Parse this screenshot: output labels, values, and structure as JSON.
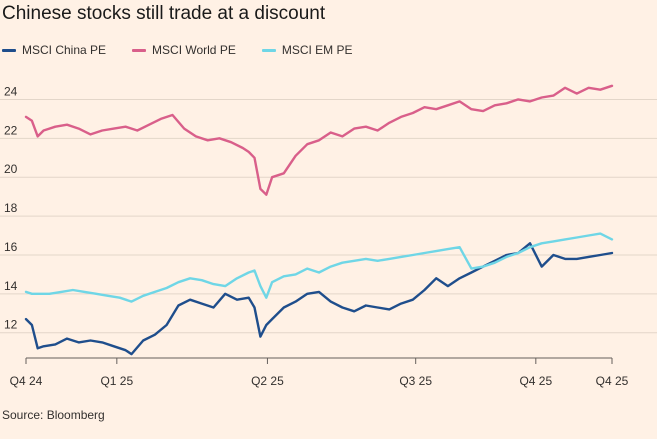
{
  "chart_data": {
    "type": "line",
    "title": "Chinese stocks still trade at a discount",
    "source": "Source: Bloomberg",
    "x_ticks": [
      "Q4 24",
      "Q1 25",
      "Q2 25",
      "Q3 25",
      "Q4 25",
      "Q4 25"
    ],
    "x_tick_positions": [
      0,
      0.155,
      0.412,
      0.665,
      0.87,
      1.0
    ],
    "ylim": [
      10.7,
      25
    ],
    "yticks": [
      12,
      14,
      16,
      18,
      20,
      22,
      24
    ],
    "grid": true,
    "series": [
      {
        "name": "MSCI China PE",
        "color": "#1f4e8c",
        "x": [
          0,
          0.01,
          0.02,
          0.03,
          0.05,
          0.07,
          0.09,
          0.11,
          0.13,
          0.15,
          0.17,
          0.18,
          0.2,
          0.22,
          0.24,
          0.26,
          0.28,
          0.3,
          0.32,
          0.34,
          0.36,
          0.38,
          0.39,
          0.4,
          0.41,
          0.42,
          0.44,
          0.46,
          0.48,
          0.5,
          0.52,
          0.54,
          0.56,
          0.58,
          0.6,
          0.62,
          0.64,
          0.66,
          0.68,
          0.7,
          0.72,
          0.74,
          0.76,
          0.78,
          0.8,
          0.82,
          0.84,
          0.86,
          0.88,
          0.9,
          0.92,
          0.94,
          0.96,
          0.98,
          1.0
        ],
        "values": [
          12.7,
          12.4,
          11.2,
          11.3,
          11.4,
          11.7,
          11.5,
          11.6,
          11.5,
          11.3,
          11.1,
          10.9,
          11.6,
          11.9,
          12.4,
          13.4,
          13.7,
          13.5,
          13.3,
          14.0,
          13.7,
          13.8,
          13.3,
          11.8,
          12.4,
          12.7,
          13.3,
          13.6,
          14.0,
          14.1,
          13.6,
          13.3,
          13.1,
          13.4,
          13.3,
          13.2,
          13.5,
          13.7,
          14.2,
          14.8,
          14.4,
          14.8,
          15.1,
          15.4,
          15.7,
          16.0,
          16.1,
          16.6,
          15.4,
          16.0,
          15.8,
          15.8,
          15.9,
          16.0,
          16.1
        ]
      },
      {
        "name": "MSCI World PE",
        "color": "#d95f8a",
        "x": [
          0,
          0.01,
          0.02,
          0.03,
          0.05,
          0.07,
          0.09,
          0.11,
          0.13,
          0.15,
          0.17,
          0.19,
          0.21,
          0.23,
          0.25,
          0.27,
          0.29,
          0.31,
          0.33,
          0.35,
          0.37,
          0.38,
          0.39,
          0.4,
          0.41,
          0.42,
          0.44,
          0.46,
          0.48,
          0.5,
          0.52,
          0.54,
          0.56,
          0.58,
          0.6,
          0.62,
          0.64,
          0.66,
          0.68,
          0.7,
          0.72,
          0.74,
          0.76,
          0.78,
          0.8,
          0.82,
          0.84,
          0.86,
          0.88,
          0.9,
          0.92,
          0.94,
          0.96,
          0.98,
          1.0
        ],
        "values": [
          23.1,
          22.9,
          22.1,
          22.4,
          22.6,
          22.7,
          22.5,
          22.2,
          22.4,
          22.5,
          22.6,
          22.4,
          22.7,
          23.0,
          23.2,
          22.5,
          22.1,
          21.9,
          22.0,
          21.8,
          21.5,
          21.3,
          21.0,
          19.4,
          19.1,
          20.0,
          20.2,
          21.1,
          21.7,
          21.9,
          22.3,
          22.1,
          22.5,
          22.6,
          22.4,
          22.8,
          23.1,
          23.3,
          23.6,
          23.5,
          23.7,
          23.9,
          23.5,
          23.4,
          23.7,
          23.8,
          24.0,
          23.9,
          24.1,
          24.2,
          24.6,
          24.3,
          24.6,
          24.5,
          24.7
        ]
      },
      {
        "name": "MSCI EM PE",
        "color": "#6fd6e6",
        "x": [
          0,
          0.01,
          0.02,
          0.04,
          0.06,
          0.08,
          0.1,
          0.12,
          0.14,
          0.16,
          0.18,
          0.2,
          0.22,
          0.24,
          0.26,
          0.28,
          0.3,
          0.32,
          0.34,
          0.36,
          0.38,
          0.39,
          0.4,
          0.41,
          0.42,
          0.44,
          0.46,
          0.48,
          0.5,
          0.52,
          0.54,
          0.56,
          0.58,
          0.6,
          0.62,
          0.64,
          0.66,
          0.68,
          0.7,
          0.72,
          0.74,
          0.76,
          0.78,
          0.8,
          0.82,
          0.84,
          0.86,
          0.88,
          0.9,
          0.92,
          0.94,
          0.96,
          0.98,
          1.0
        ],
        "values": [
          14.1,
          14.0,
          14.0,
          14.0,
          14.1,
          14.2,
          14.1,
          14.0,
          13.9,
          13.8,
          13.6,
          13.9,
          14.1,
          14.3,
          14.6,
          14.8,
          14.7,
          14.5,
          14.4,
          14.8,
          15.1,
          15.2,
          14.4,
          13.8,
          14.6,
          14.9,
          15.0,
          15.3,
          15.1,
          15.4,
          15.6,
          15.7,
          15.8,
          15.7,
          15.8,
          15.9,
          16.0,
          16.1,
          16.2,
          16.3,
          16.4,
          15.3,
          15.4,
          15.6,
          15.9,
          16.1,
          16.4,
          16.6,
          16.7,
          16.8,
          16.9,
          17.0,
          17.1,
          16.8
        ]
      }
    ]
  }
}
